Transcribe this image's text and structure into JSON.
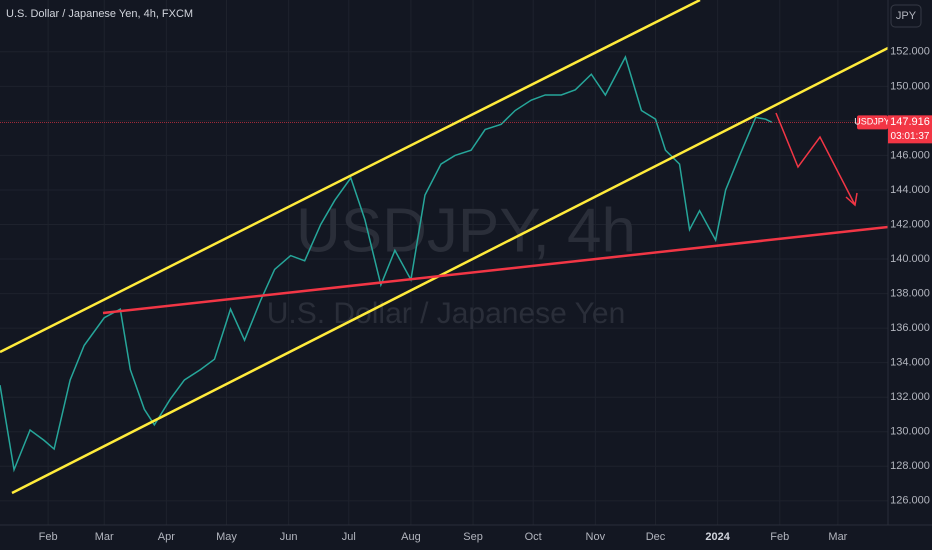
{
  "chart_data": {
    "type": "line",
    "title": "U.S. Dollar / Japanese Yen, 4h, FXCM",
    "watermark": "USDJPY, 4h",
    "watermark_subtitle": "U.S. Dollar / Japanese Yen",
    "currency": "JPY",
    "countdown": "03:01:37",
    "x": [
      7,
      14,
      22,
      29,
      34,
      42,
      49,
      59,
      67,
      72,
      79,
      84,
      92,
      99,
      107,
      114,
      122,
      129,
      137,
      144,
      152,
      159,
      167,
      174,
      182,
      189,
      197,
      204,
      212,
      219,
      227,
      234,
      242,
      249,
      257,
      264,
      272,
      279,
      287,
      294,
      302,
      309,
      319,
      327,
      334,
      339,
      346,
      351,
      356,
      364,
      369,
      376,
      384,
      389,
      392
    ],
    "series": [
      {
        "name": "USDJPY",
        "color": "#26a69a",
        "values": [
          132.7,
          127.8,
          130.1,
          129.5,
          129.0,
          133.0,
          135.0,
          136.6,
          137.1,
          133.6,
          131.3,
          130.4,
          131.9,
          133.0,
          133.6,
          134.2,
          137.1,
          135.3,
          137.6,
          139.4,
          140.2,
          139.9,
          142.0,
          143.4,
          144.7,
          142.3,
          138.5,
          140.5,
          138.8,
          143.7,
          145.5,
          146.0,
          146.3,
          147.5,
          147.8,
          148.6,
          149.2,
          149.5,
          149.5,
          149.8,
          150.7,
          149.5,
          151.7,
          148.6,
          148.1,
          146.3,
          145.5,
          141.7,
          142.8,
          141.1,
          144.0,
          146.0,
          148.2,
          148.1,
          147.916
        ]
      }
    ],
    "xlim": [
      7,
      450
    ],
    "xticks": [
      {
        "value": 31,
        "label": "Feb"
      },
      {
        "value": 59,
        "label": "Mar"
      },
      {
        "value": 90,
        "label": "Apr"
      },
      {
        "value": 120,
        "label": "May"
      },
      {
        "value": 151,
        "label": "Jun"
      },
      {
        "value": 181,
        "label": "Jul"
      },
      {
        "value": 212,
        "label": "Aug"
      },
      {
        "value": 243,
        "label": "Sep"
      },
      {
        "value": 273,
        "label": "Oct"
      },
      {
        "value": 304,
        "label": "Nov"
      },
      {
        "value": 334,
        "label": "Dec"
      },
      {
        "value": 365,
        "label": "2024"
      },
      {
        "value": 396,
        "label": "Feb"
      },
      {
        "value": 425,
        "label": "Mar"
      }
    ],
    "ylim": [
      124.6,
      155.0
    ],
    "yticks": [
      {
        "value": 126,
        "label": "126.000"
      },
      {
        "value": 128,
        "label": "128.000"
      },
      {
        "value": 130,
        "label": "130.000"
      },
      {
        "value": 132,
        "label": "132.000"
      },
      {
        "value": 134,
        "label": "134.000"
      },
      {
        "value": 136,
        "label": "136.000"
      },
      {
        "value": 138,
        "label": "138.000"
      },
      {
        "value": 140,
        "label": "140.000"
      },
      {
        "value": 142,
        "label": "142.000"
      },
      {
        "value": 144,
        "label": "144.000"
      },
      {
        "value": 146,
        "label": "146.000"
      },
      {
        "value": 148,
        "label": "148.000"
      },
      {
        "value": 150,
        "label": "150.000"
      },
      {
        "value": 152,
        "label": "152.000"
      }
    ],
    "grid": true
  }
}
